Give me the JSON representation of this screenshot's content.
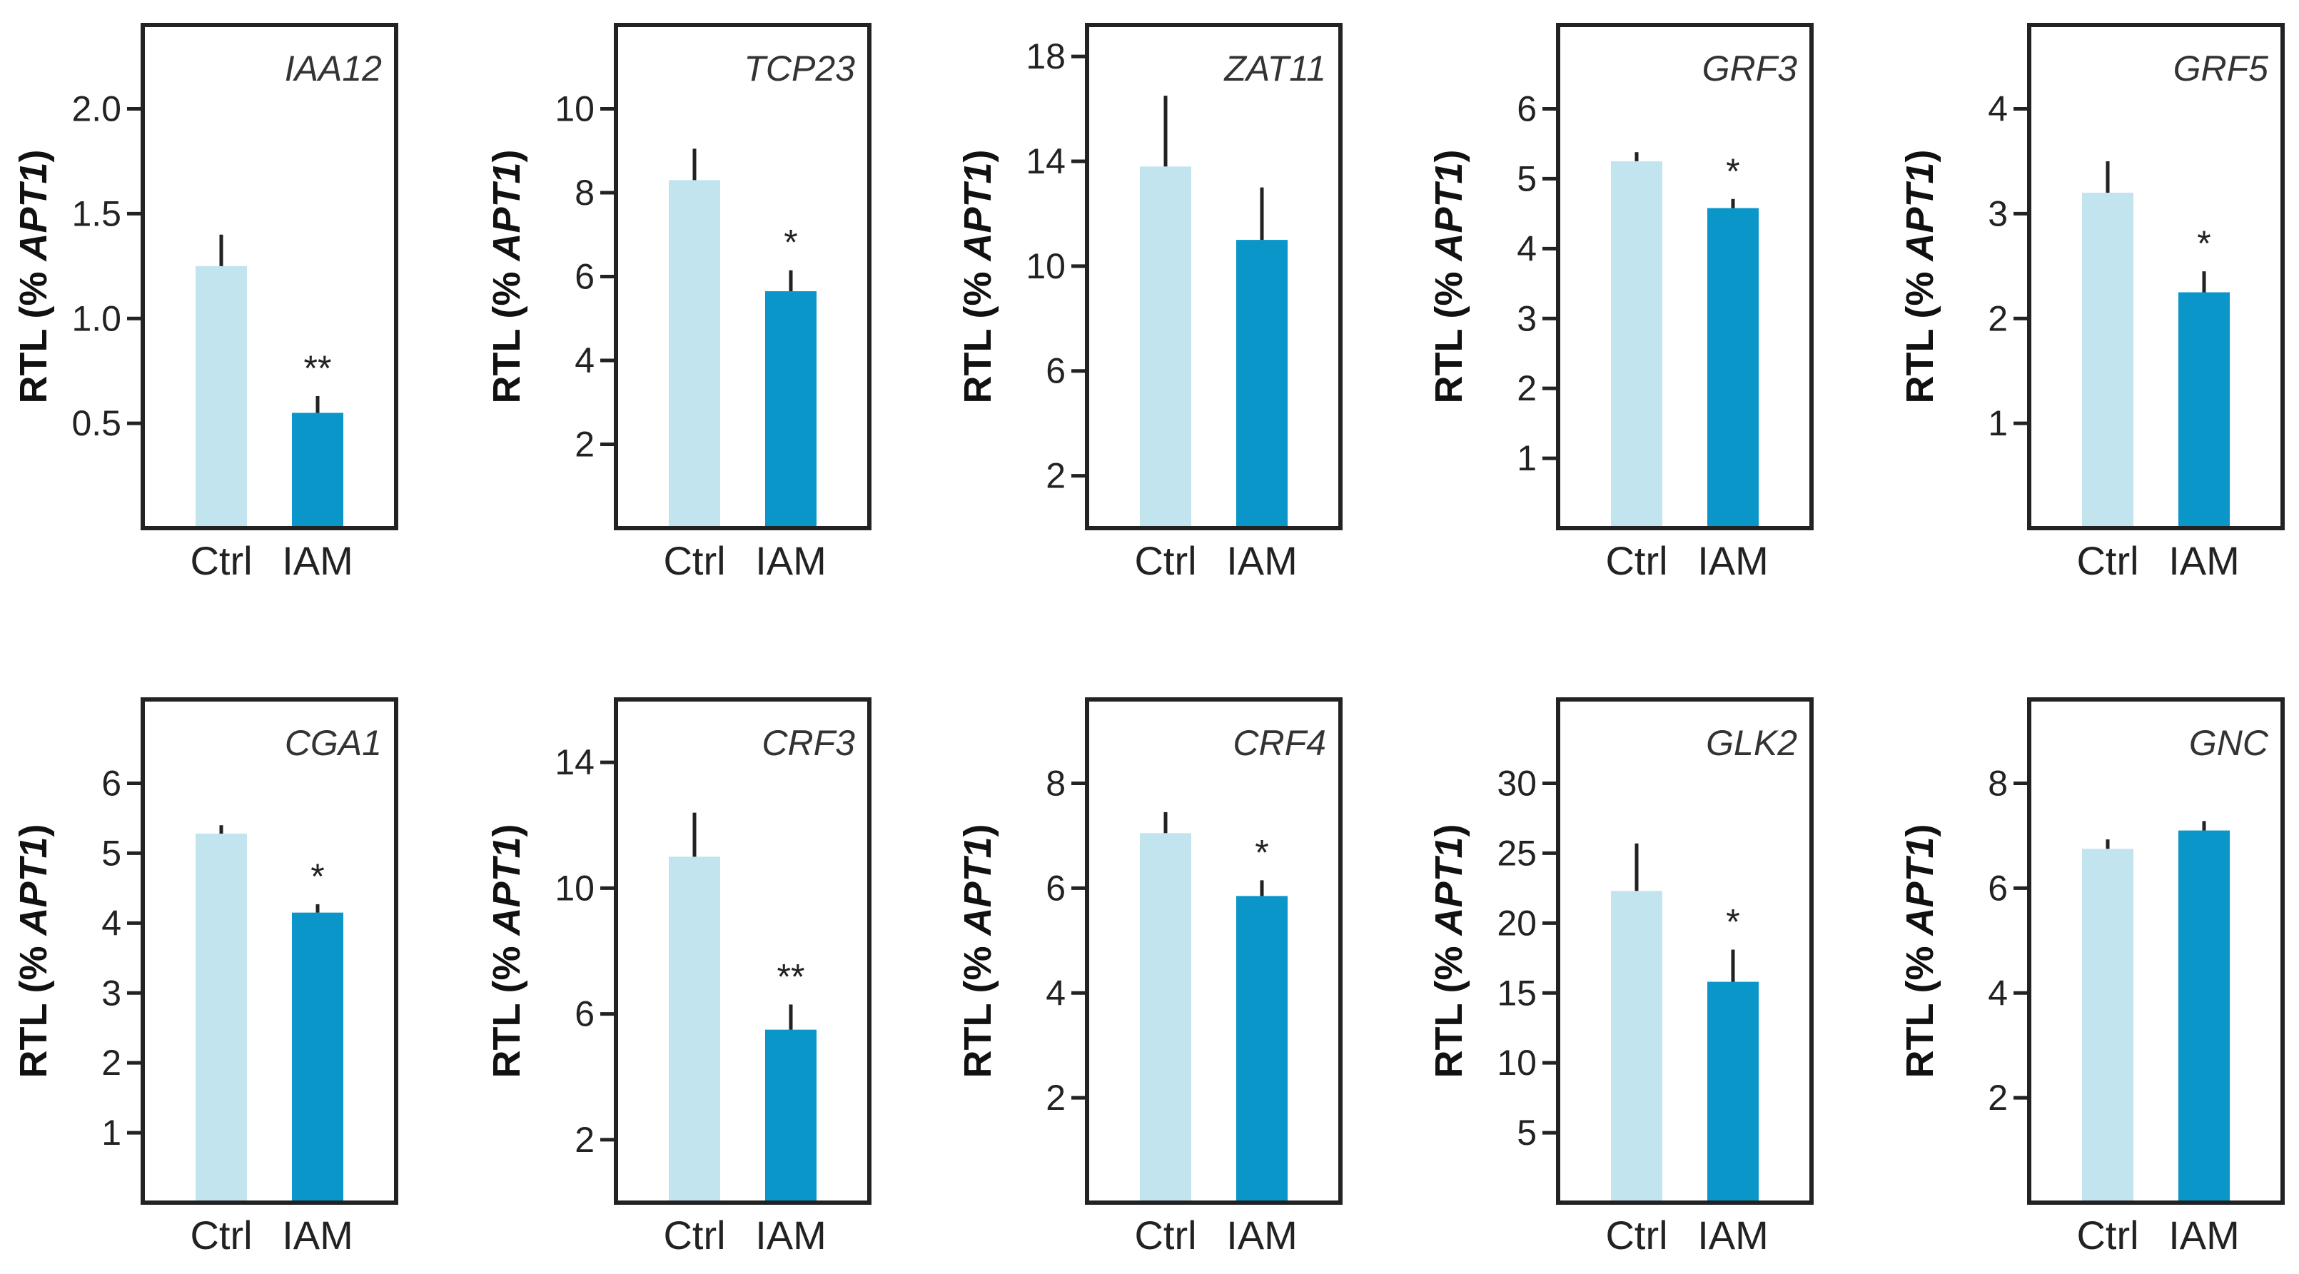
{
  "figure": {
    "ylabel_prefix": "RTL (% ",
    "ylabel_gene": "APT1",
    "ylabel_suffix": ")"
  },
  "colors": {
    "ctrl": "#c2e4ef",
    "iam": "#0a96c8",
    "axis": "#222222",
    "errorbar": "#222222"
  },
  "chart_data": [
    {
      "type": "bar",
      "title": "IAA12",
      "categories": [
        "Ctrl",
        "IAM"
      ],
      "ylim": [
        0,
        2.4
      ],
      "yticks": [
        0.5,
        1.0,
        1.5,
        2.0
      ],
      "yticklabels": [
        "0.5",
        "1.0",
        "1.5",
        "2.0"
      ],
      "values": [
        1.25,
        0.55
      ],
      "errors": [
        0.15,
        0.08
      ],
      "significance": [
        "",
        "**"
      ]
    },
    {
      "type": "bar",
      "title": "TCP23",
      "categories": [
        "Ctrl",
        "IAM"
      ],
      "ylim": [
        0,
        12
      ],
      "yticks": [
        2,
        4,
        6,
        8,
        10
      ],
      "yticklabels": [
        "2",
        "4",
        "6",
        "8",
        "10"
      ],
      "values": [
        8.3,
        5.65
      ],
      "errors": [
        0.75,
        0.5
      ],
      "significance": [
        "",
        "*"
      ]
    },
    {
      "type": "bar",
      "title": "ZAT11",
      "categories": [
        "Ctrl",
        "IAM"
      ],
      "ylim": [
        0,
        19.2
      ],
      "yticks": [
        2,
        6,
        10,
        14,
        18
      ],
      "yticklabels": [
        "2",
        "6",
        "10",
        "14",
        "18"
      ],
      "values": [
        13.8,
        11.0
      ],
      "errors": [
        2.7,
        2.0
      ],
      "significance": [
        "",
        ""
      ]
    },
    {
      "type": "bar",
      "title": "GRF3",
      "categories": [
        "Ctrl",
        "IAM"
      ],
      "ylim": [
        0,
        7.2
      ],
      "yticks": [
        1,
        2,
        3,
        4,
        5,
        6
      ],
      "yticklabels": [
        "1",
        "2",
        "3",
        "4",
        "5",
        "6"
      ],
      "values": [
        5.25,
        4.58
      ],
      "errors": [
        0.13,
        0.13
      ],
      "significance": [
        "",
        "*"
      ]
    },
    {
      "type": "bar",
      "title": "GRF5",
      "categories": [
        "Ctrl",
        "IAM"
      ],
      "ylim": [
        0,
        4.8
      ],
      "yticks": [
        1,
        2,
        3,
        4
      ],
      "yticklabels": [
        "1",
        "2",
        "3",
        "4"
      ],
      "values": [
        3.2,
        2.25
      ],
      "errors": [
        0.3,
        0.2
      ],
      "significance": [
        "",
        "*"
      ]
    },
    {
      "type": "bar",
      "title": "CGA1",
      "categories": [
        "Ctrl",
        "IAM"
      ],
      "ylim": [
        0,
        7.2
      ],
      "yticks": [
        1,
        2,
        3,
        4,
        5,
        6
      ],
      "yticklabels": [
        "1",
        "2",
        "3",
        "4",
        "5",
        "6"
      ],
      "values": [
        5.28,
        4.15
      ],
      "errors": [
        0.12,
        0.12
      ],
      "significance": [
        "",
        "*"
      ]
    },
    {
      "type": "bar",
      "title": "CRF3",
      "categories": [
        "Ctrl",
        "IAM"
      ],
      "ylim": [
        0,
        16
      ],
      "yticks": [
        2,
        6,
        10,
        14
      ],
      "yticklabels": [
        "2",
        "6",
        "10",
        "14"
      ],
      "values": [
        11.0,
        5.5
      ],
      "errors": [
        1.4,
        0.8
      ],
      "significance": [
        "",
        "**"
      ]
    },
    {
      "type": "bar",
      "title": "CRF4",
      "categories": [
        "Ctrl",
        "IAM"
      ],
      "ylim": [
        0,
        9.6
      ],
      "yticks": [
        2,
        4,
        6,
        8
      ],
      "yticklabels": [
        "2",
        "4",
        "6",
        "8"
      ],
      "values": [
        7.05,
        5.85
      ],
      "errors": [
        0.4,
        0.3
      ],
      "significance": [
        "",
        "*"
      ]
    },
    {
      "type": "bar",
      "title": "GLK2",
      "categories": [
        "Ctrl",
        "IAM"
      ],
      "ylim": [
        0,
        36
      ],
      "yticks": [
        5,
        10,
        15,
        20,
        25,
        30
      ],
      "yticklabels": [
        "5",
        "10",
        "15",
        "20",
        "25",
        "30"
      ],
      "values": [
        22.3,
        15.8
      ],
      "errors": [
        3.4,
        2.3
      ],
      "significance": [
        "",
        "*"
      ]
    },
    {
      "type": "bar",
      "title": "GNC",
      "categories": [
        "Ctrl",
        "IAM"
      ],
      "ylim": [
        0,
        9.6
      ],
      "yticks": [
        2,
        4,
        6,
        8
      ],
      "yticklabels": [
        "2",
        "4",
        "6",
        "8"
      ],
      "values": [
        6.75,
        7.1
      ],
      "errors": [
        0.18,
        0.18
      ],
      "significance": [
        "",
        ""
      ]
    }
  ]
}
